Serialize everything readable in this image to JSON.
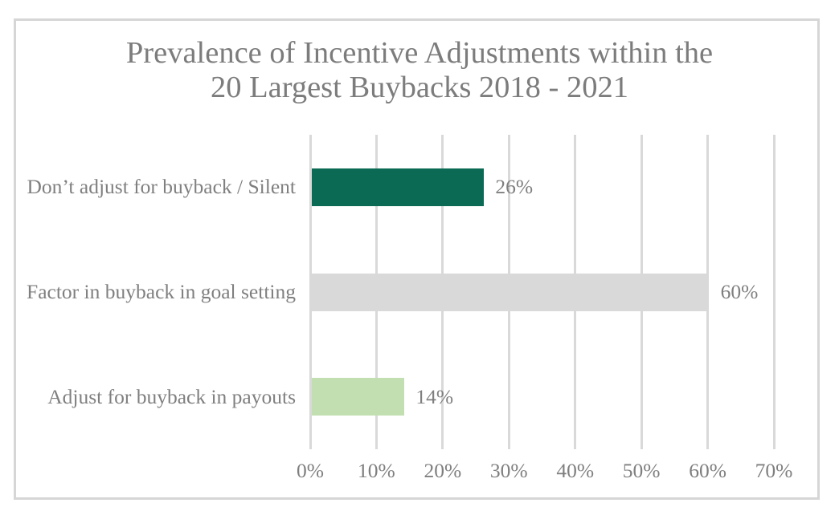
{
  "chart_data": {
    "type": "bar",
    "orientation": "horizontal",
    "title": "Prevalence of Incentive Adjustments within the 20 Largest Buybacks 2018 - 2021",
    "title_lines": [
      "Prevalence of Incentive Adjustments within the",
      "20 Largest Buybacks 2018 - 2021"
    ],
    "categories": [
      "Don’t adjust for buyback / Silent",
      "Factor in buyback in goal setting",
      "Adjust for buyback in payouts"
    ],
    "values": [
      26,
      60,
      14
    ],
    "value_labels": [
      "26%",
      "60%",
      "14%"
    ],
    "series_colors": [
      "#0a6a53",
      "#d9d9d9",
      "#c2dfb1"
    ],
    "x_tick_labels": [
      "0%",
      "10%",
      "20%",
      "30%",
      "40%",
      "50%",
      "60%",
      "70%"
    ],
    "xlim": [
      0,
      70
    ],
    "grid": true,
    "legend": false,
    "text_color": "#7f7f7f",
    "gridline_color": "#d9d9d9",
    "frame_color": "#d6d6d6",
    "background": "#ffffff"
  }
}
